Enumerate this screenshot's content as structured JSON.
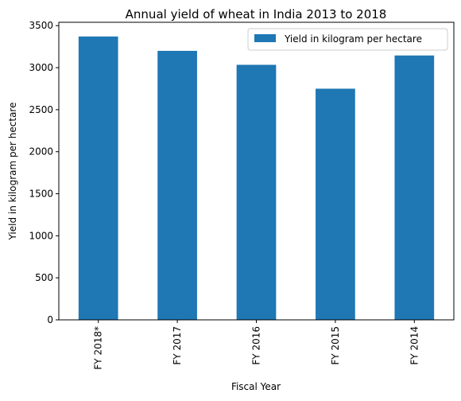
{
  "chart_data": {
    "type": "bar",
    "title": "Annual yield of wheat in India 2013 to 2018",
    "xlabel": "Fiscal Year",
    "ylabel": "Yield in kilogram per hectare",
    "categories": [
      "FY 2018*",
      "FY 2017",
      "FY 2016",
      "FY 2015",
      "FY 2014"
    ],
    "series": [
      {
        "name": "Yield in kilogram per hectare",
        "values": [
          3371,
          3200,
          3034,
          2750,
          3145
        ],
        "color": "#1f77b4"
      }
    ],
    "ylim": [
      0,
      3540
    ],
    "yticks": [
      0,
      500,
      1000,
      1500,
      2000,
      2500,
      3000,
      3500
    ],
    "grid": false,
    "legend_position": "top-right"
  }
}
